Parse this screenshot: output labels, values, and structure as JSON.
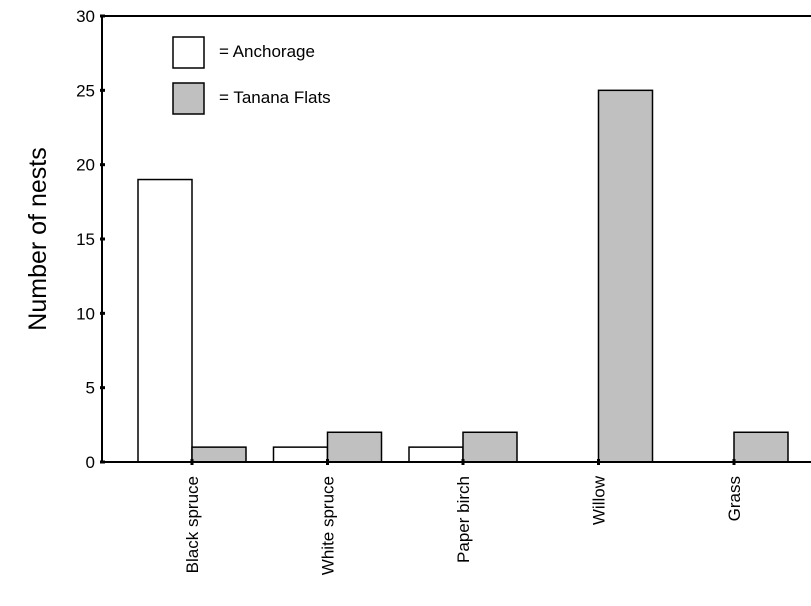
{
  "chart_data": {
    "type": "bar",
    "title": "",
    "xlabel": "",
    "ylabel": "Number of nests",
    "ylim": [
      0,
      30
    ],
    "yticks": [
      0,
      5,
      10,
      15,
      20,
      25,
      30
    ],
    "categories": [
      "Black spruce",
      "White spruce",
      "Paper birch",
      "Willow",
      "Grass"
    ],
    "series": [
      {
        "name": "= Anchorage",
        "color": "#ffffff",
        "values": [
          19,
          1,
          1,
          0,
          0
        ]
      },
      {
        "name": "= Tanana Flats",
        "color": "#c0c0c0",
        "values": [
          1,
          2,
          2,
          25,
          2
        ]
      }
    ],
    "legend_position": "top-left",
    "grid": false
  }
}
